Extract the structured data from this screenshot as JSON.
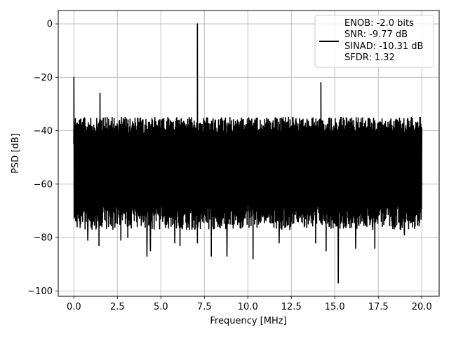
{
  "chart_data": {
    "type": "line",
    "xlabel": "Frequency [MHz]",
    "ylabel": "PSD [dB]",
    "xlim": [
      -0.9,
      21.0
    ],
    "ylim": [
      -102,
      5
    ],
    "x_ticks": [
      0.0,
      2.5,
      5.0,
      7.5,
      10.0,
      12.5,
      15.0,
      17.5,
      20.0
    ],
    "x_tick_labels": [
      "0.0",
      "2.5",
      "5.0",
      "7.5",
      "10.0",
      "12.5",
      "15.0",
      "17.5",
      "20.0"
    ],
    "y_ticks": [
      0,
      -20,
      -40,
      -60,
      -80,
      -100
    ],
    "y_tick_labels": [
      "0",
      "−20",
      "−40",
      "−60",
      "−80",
      "−100"
    ],
    "grid": true,
    "legend_position": "top-right",
    "series": [
      {
        "color": "#000000",
        "noise_floor": {
          "x_range": [
            0.0,
            20.0
          ],
          "typical_low": -68,
          "typical_high": -38,
          "median": -52
        },
        "peaks": [
          {
            "x": 0.0,
            "y": -20
          },
          {
            "x": 1.5,
            "y": -26
          },
          {
            "x": 7.1,
            "y": 0
          },
          {
            "x": 14.2,
            "y": -22
          }
        ],
        "dips": [
          {
            "x": 0.8,
            "y": -81
          },
          {
            "x": 1.45,
            "y": -83
          },
          {
            "x": 2.7,
            "y": -81
          },
          {
            "x": 3.1,
            "y": -80
          },
          {
            "x": 4.2,
            "y": -87
          },
          {
            "x": 4.4,
            "y": -85
          },
          {
            "x": 5.8,
            "y": -82
          },
          {
            "x": 6.1,
            "y": -83
          },
          {
            "x": 7.1,
            "y": -82
          },
          {
            "x": 7.9,
            "y": -87
          },
          {
            "x": 8.8,
            "y": -87
          },
          {
            "x": 10.3,
            "y": -88
          },
          {
            "x": 11.8,
            "y": -82
          },
          {
            "x": 13.9,
            "y": -82
          },
          {
            "x": 14.5,
            "y": -85
          },
          {
            "x": 15.2,
            "y": -97
          },
          {
            "x": 16.2,
            "y": -84
          },
          {
            "x": 17.3,
            "y": -84
          },
          {
            "x": 19.0,
            "y": -79
          }
        ]
      }
    ],
    "legend_lines": [
      "ENOB: -2.0 bits",
      "SNR: -9.77 dB",
      "SINAD: -10.31 dB",
      "SFDR: 1.32"
    ]
  }
}
